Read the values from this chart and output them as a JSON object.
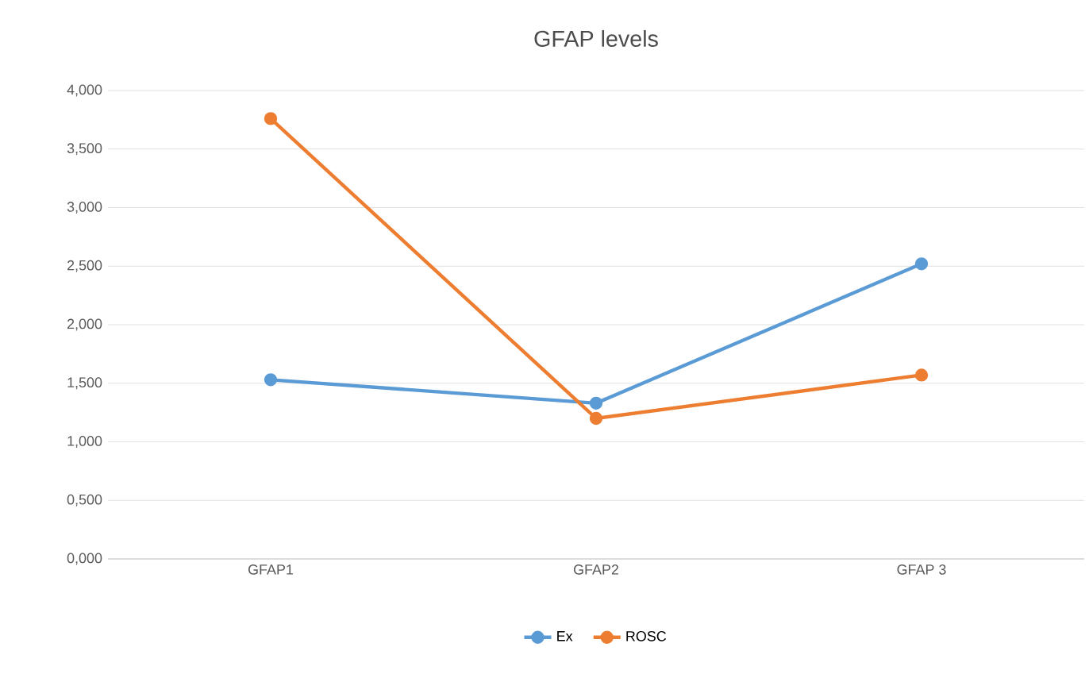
{
  "chart_data": {
    "type": "line",
    "title": "GFAP levels",
    "categories": [
      "GFAP1",
      "GFAP2",
      "GFAP 3"
    ],
    "series": [
      {
        "name": "Ex",
        "color": "#5b9bd5",
        "values": [
          1.53,
          1.33,
          2.52
        ]
      },
      {
        "name": "ROSC",
        "color": "#ed7d31",
        "values": [
          3.76,
          1.2,
          1.57
        ]
      }
    ],
    "ylim": [
      0,
      4
    ],
    "yticks": [
      {
        "value": 0,
        "label": "0,000"
      },
      {
        "value": 0.5,
        "label": "0,500"
      },
      {
        "value": 1,
        "label": "1,000"
      },
      {
        "value": 1.5,
        "label": "1,500"
      },
      {
        "value": 2,
        "label": "2,000"
      },
      {
        "value": 2.5,
        "label": "2,500"
      },
      {
        "value": 3,
        "label": "3,000"
      },
      {
        "value": 3.5,
        "label": "3,500"
      },
      {
        "value": 4,
        "label": "4,000"
      }
    ],
    "grid": "y",
    "legend": "bottom",
    "marker": "circle",
    "line_style": "solid"
  }
}
